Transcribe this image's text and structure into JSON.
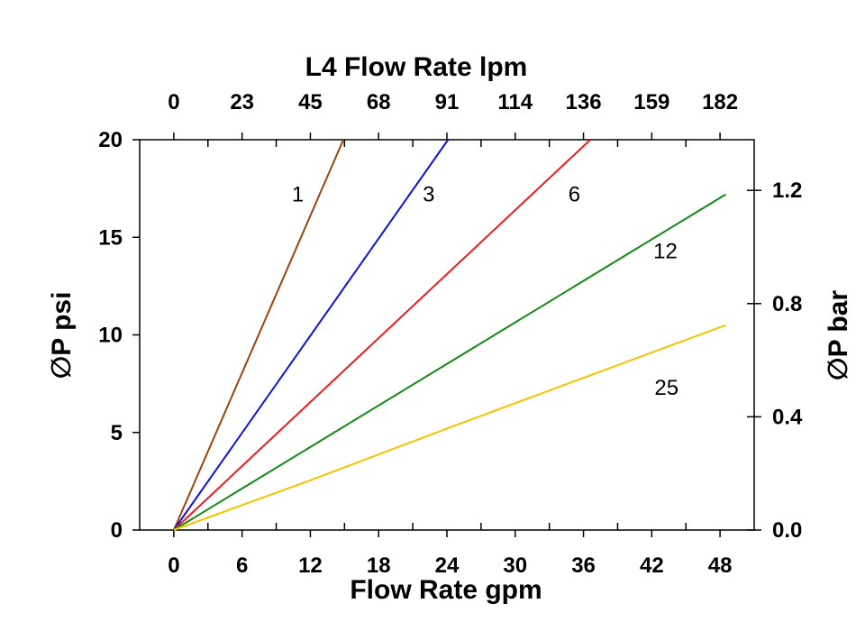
{
  "chart_data": {
    "type": "line",
    "title": "L4  Flow Rate lpm",
    "xlabel": "Flow Rate gpm",
    "ylabel": "∅P psi",
    "y2label": "∅P bar",
    "x_ticks": [
      "0",
      "6",
      "12",
      "18",
      "24",
      "30",
      "36",
      "42",
      "48"
    ],
    "x2_ticks": [
      "0",
      "23",
      "45",
      "68",
      "91",
      "114",
      "136",
      "159",
      "182"
    ],
    "y_ticks": [
      "0",
      "5",
      "10",
      "15",
      "20"
    ],
    "y2_ticks": [
      "0.0",
      "0.4",
      "0.8",
      "1.2"
    ],
    "xlim": [
      -3,
      51
    ],
    "ylim": [
      0,
      20
    ],
    "y2lim": [
      0,
      1.379
    ],
    "grid": false,
    "series": [
      {
        "name": "1",
        "color": "#a0420a",
        "x": [
          0,
          14.9
        ],
        "y": [
          0,
          20
        ]
      },
      {
        "name": "3",
        "color": "#1010e0",
        "x": [
          0,
          24.1
        ],
        "y": [
          0,
          20
        ]
      },
      {
        "name": "6",
        "color": "#ee1c1c",
        "x": [
          0,
          36.6
        ],
        "y": [
          0,
          20
        ]
      },
      {
        "name": "12",
        "color": "#138a13",
        "x": [
          0,
          48.5
        ],
        "y": [
          0,
          17.2
        ]
      },
      {
        "name": "25",
        "color": "#f5c400",
        "x": [
          0,
          12,
          24,
          36,
          48.5
        ],
        "y": [
          0,
          2.55,
          5.2,
          7.8,
          10.5
        ]
      }
    ],
    "series_labels": [
      {
        "text": "1",
        "x": 10.9,
        "y": 17.2
      },
      {
        "text": "3",
        "x": 22.4,
        "y": 17.2
      },
      {
        "text": "6",
        "x": 35.2,
        "y": 17.2
      },
      {
        "text": "12",
        "x": 43.2,
        "y": 14.3
      },
      {
        "text": "25",
        "x": 43.3,
        "y": 7.3
      }
    ]
  }
}
